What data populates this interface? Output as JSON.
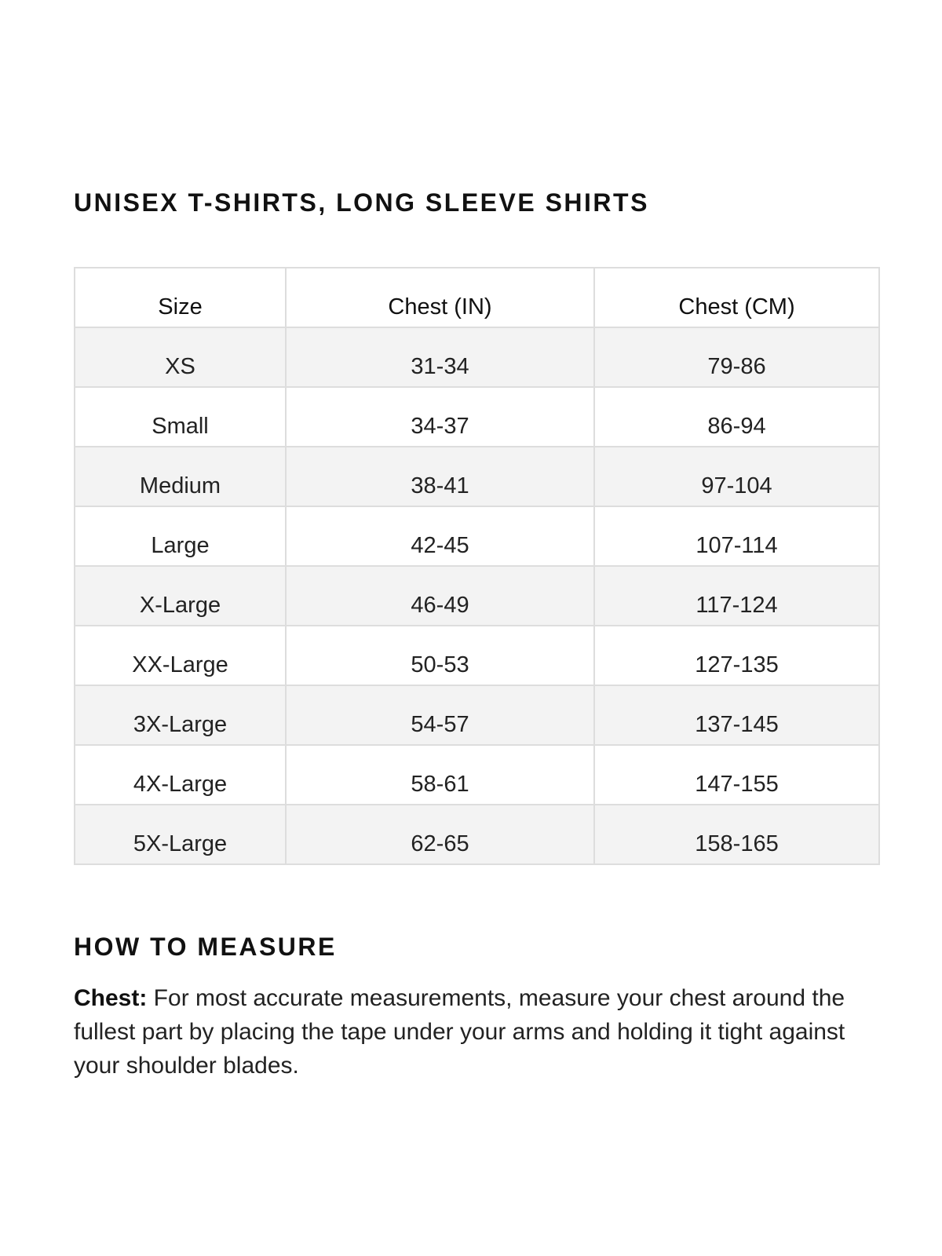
{
  "title": "UNISEX T-SHIRTS, LONG SLEEVE SHIRTS",
  "table": {
    "headers": [
      "Size",
      "Chest (IN)",
      "Chest (CM)"
    ],
    "rows": [
      [
        "XS",
        "31-34",
        "79-86"
      ],
      [
        "Small",
        "34-37",
        "86-94"
      ],
      [
        "Medium",
        "38-41",
        "97-104"
      ],
      [
        "Large",
        "42-45",
        "107-114"
      ],
      [
        "X-Large",
        "46-49",
        "117-124"
      ],
      [
        "XX-Large",
        "50-53",
        "127-135"
      ],
      [
        "3X-Large",
        "54-57",
        "137-145"
      ],
      [
        "4X-Large",
        "58-61",
        "147-155"
      ],
      [
        "5X-Large",
        "62-65",
        "158-165"
      ]
    ]
  },
  "how_to_measure": {
    "heading": "HOW TO MEASURE",
    "label": "Chest:",
    "text": " For most accurate measurements, measure your chest around the fullest part by placing the tape under your arms and holding it tight against your shoulder blades."
  }
}
